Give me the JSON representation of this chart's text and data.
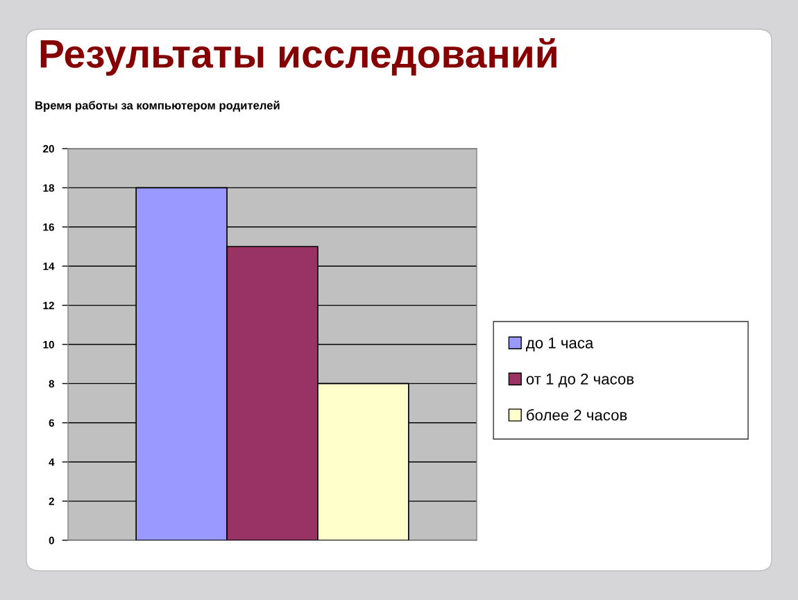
{
  "chart_data": {
    "type": "bar",
    "title": "Результаты исследований",
    "subtitle": "Время работы за компьютером родителей",
    "categories": [
      null
    ],
    "series": [
      {
        "name": "до 1 часа",
        "color": "#9999ff",
        "values": [
          18
        ]
      },
      {
        "name": "от 1 до 2 часов",
        "color": "#993366",
        "values": [
          15
        ]
      },
      {
        "name": "более 2 часов",
        "color": "#ffffcc",
        "values": [
          8
        ]
      }
    ],
    "ylim": [
      0,
      20
    ],
    "yticks": [
      0,
      2,
      4,
      6,
      8,
      10,
      12,
      14,
      16,
      18,
      20
    ],
    "grid": "y",
    "legend": "right"
  }
}
